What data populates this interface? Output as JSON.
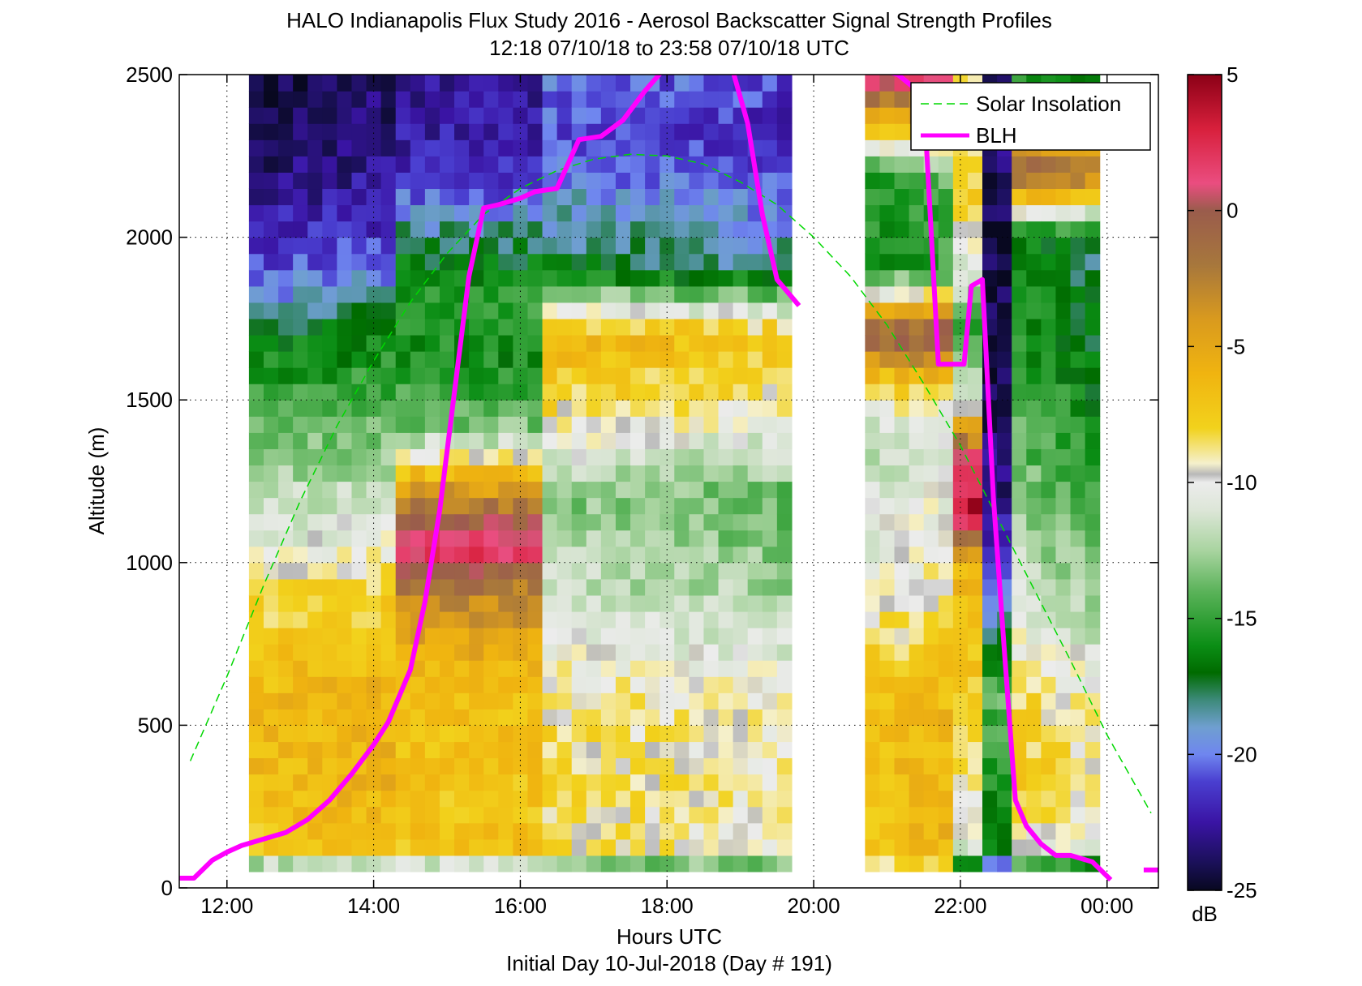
{
  "chart_data": {
    "type": "heatmap",
    "title": "HALO Indianapolis Flux Study 2016 - Aerosol Backscatter Signal Strength Profiles",
    "subtitle": "12:18 07/10/18 to 23:58 07/10/18  UTC",
    "xlabel": "Hours UTC",
    "xlabel2": "Initial Day 10-Jul-2018 (Day # 191)",
    "ylabel": "Altitude (m)",
    "xlim": [
      11.35,
      24.7
    ],
    "ylim": [
      0,
      2500
    ],
    "x_ticks": [
      {
        "value": 12,
        "label": "12:00"
      },
      {
        "value": 14,
        "label": "14:00"
      },
      {
        "value": 16,
        "label": "16:00"
      },
      {
        "value": 18,
        "label": "18:00"
      },
      {
        "value": 20,
        "label": "20:00"
      },
      {
        "value": 22,
        "label": "22:00"
      },
      {
        "value": 24,
        "label": "00:00"
      }
    ],
    "y_ticks": [
      0,
      500,
      1000,
      1500,
      2000,
      2500
    ],
    "grid": true,
    "legend_position": "top-right",
    "colorbar": {
      "label": "dB",
      "range": [
        -25,
        5
      ],
      "ticks": [
        5,
        0,
        -5,
        -10,
        -15,
        -20,
        -25
      ],
      "stops": [
        {
          "v": 5,
          "c": "#8b0016"
        },
        {
          "v": 3,
          "c": "#d8203c"
        },
        {
          "v": 1,
          "c": "#ea4d80"
        },
        {
          "v": 0,
          "c": "#9a5c4c"
        },
        {
          "v": -2,
          "c": "#a7773c"
        },
        {
          "v": -4,
          "c": "#d99a1e"
        },
        {
          "v": -6,
          "c": "#f0b410"
        },
        {
          "v": -8,
          "c": "#f2d21c"
        },
        {
          "v": -9.3,
          "c": "#f5f0cc"
        },
        {
          "v": -9.7,
          "c": "#b8b8b8"
        },
        {
          "v": -10,
          "c": "#ececec"
        },
        {
          "v": -11,
          "c": "#dde6d8"
        },
        {
          "v": -12.5,
          "c": "#a9d4a0"
        },
        {
          "v": -14,
          "c": "#5bb35a"
        },
        {
          "v": -16,
          "c": "#0b8e15"
        },
        {
          "v": -17,
          "c": "#006b00"
        },
        {
          "v": -18,
          "c": "#3d8a7a"
        },
        {
          "v": -19,
          "c": "#6f9fd0"
        },
        {
          "v": -20,
          "c": "#6f86ef"
        },
        {
          "v": -21,
          "c": "#4a3fd0"
        },
        {
          "v": -22.5,
          "c": "#3a14a4"
        },
        {
          "v": -24,
          "c": "#1a1058"
        },
        {
          "v": -25,
          "c": "#080820"
        }
      ]
    },
    "heatmap": {
      "time_start": 12.3,
      "time_step": 0.2,
      "alt_start": 50,
      "alt_step": 50,
      "rows": 49,
      "gap": [
        19.7,
        20.65
      ],
      "segments": [
        {
          "t0": 12.3,
          "t1": 19.7,
          "profile": [
            [
              50,
              -16.5
            ],
            [
              100,
              -7.5
            ],
            [
              300,
              -6.5
            ],
            [
              600,
              -6.5
            ],
            [
              900,
              -8.5
            ],
            [
              1100,
              -11
            ],
            [
              1300,
              -13
            ],
            [
              1550,
              -15.5
            ],
            [
              1700,
              -17
            ],
            [
              1850,
              -20
            ],
            [
              2000,
              -22
            ],
            [
              2200,
              -23.5
            ],
            [
              2500,
              -24.5
            ]
          ],
          "shift_end": 2.5
        },
        {
          "t0": 14.3,
          "t1": 16.4,
          "profile": [
            [
              50,
              -16
            ],
            [
              100,
              -7
            ],
            [
              600,
              -7
            ],
            [
              900,
              -3
            ],
            [
              1050,
              2.5
            ],
            [
              1200,
              -3
            ],
            [
              1400,
              -13
            ],
            [
              1600,
              -16
            ],
            [
              1800,
              -15
            ],
            [
              2000,
              -18
            ],
            [
              2200,
              -22
            ],
            [
              2500,
              -23
            ]
          ],
          "shift_end": 0
        },
        {
          "t0": 16.4,
          "t1": 19.7,
          "profile": [
            [
              50,
              -17
            ],
            [
              100,
              -8.5
            ],
            [
              500,
              -8.5
            ],
            [
              700,
              -9.5
            ],
            [
              900,
              -11.5
            ],
            [
              1200,
              -13
            ],
            [
              1500,
              -8
            ],
            [
              1700,
              -6
            ],
            [
              1900,
              -17
            ],
            [
              2100,
              -19
            ],
            [
              2300,
              -21
            ],
            [
              2500,
              -20
            ]
          ],
          "shift_end": -1
        },
        {
          "t0": 20.7,
          "t1": 21.9,
          "profile": [
            [
              50,
              -10.5
            ],
            [
              100,
              -7
            ],
            [
              500,
              -7
            ],
            [
              700,
              -8
            ],
            [
              900,
              -10
            ],
            [
              1200,
              -11
            ],
            [
              1400,
              -12
            ],
            [
              1550,
              -8
            ],
            [
              1700,
              0
            ],
            [
              1900,
              -16
            ],
            [
              2200,
              -15
            ],
            [
              2500,
              2
            ]
          ],
          "shift_end": 1
        },
        {
          "t0": 21.9,
          "t1": 22.3,
          "profile": [
            [
              50,
              -17
            ],
            [
              150,
              -10
            ],
            [
              400,
              -9
            ],
            [
              700,
              -7
            ],
            [
              1000,
              -6
            ],
            [
              1150,
              4
            ],
            [
              1300,
              2
            ],
            [
              1500,
              -10
            ],
            [
              1700,
              -15
            ],
            [
              1900,
              -11
            ],
            [
              2100,
              -8
            ],
            [
              2500,
              -8
            ]
          ],
          "shift_end": 0
        },
        {
          "t0": 22.3,
          "t1": 22.7,
          "profile": [
            [
              50,
              -22
            ],
            [
              100,
              -17
            ],
            [
              600,
              -14
            ],
            [
              900,
              -20
            ],
            [
              1200,
              -23
            ],
            [
              1500,
              -24
            ],
            [
              1800,
              -24.5
            ],
            [
              2100,
              -24
            ],
            [
              2500,
              -23
            ]
          ],
          "shift_end": 0
        },
        {
          "t0": 22.7,
          "t1": 24.0,
          "profile": [
            [
              50,
              -19
            ],
            [
              100,
              -9.5
            ],
            [
              300,
              -7
            ],
            [
              600,
              -8
            ],
            [
              900,
              -11
            ],
            [
              1200,
              -13
            ],
            [
              1600,
              -15
            ],
            [
              2000,
              -16
            ],
            [
              2200,
              0
            ],
            [
              2500,
              -16
            ]
          ],
          "shift_end": -2
        }
      ]
    },
    "series": [
      {
        "name": "Solar Insolation",
        "color": "#00d800",
        "style": "dashed",
        "x": [
          11.5,
          12.0,
          12.5,
          13.0,
          13.5,
          14.0,
          14.5,
          15.0,
          15.5,
          16.0,
          16.5,
          17.0,
          17.5,
          18.0,
          18.5,
          19.0,
          19.5,
          20.0,
          20.5,
          21.0,
          21.5,
          22.0,
          22.5,
          23.0,
          23.5,
          24.0,
          24.6
        ],
        "y": [
          390,
          650,
          930,
          1190,
          1420,
          1620,
          1800,
          1950,
          2070,
          2150,
          2205,
          2240,
          2255,
          2250,
          2225,
          2170,
          2100,
          2000,
          1880,
          1730,
          1550,
          1360,
          1140,
          920,
          700,
          470,
          230
        ]
      },
      {
        "name": "BLH",
        "color": "#ff00ff",
        "style": "solid",
        "segments": [
          {
            "x": [
              11.35,
              11.55,
              11.8,
              12.0,
              12.2,
              12.5,
              12.8,
              13.1,
              13.4,
              13.7,
              14.0,
              14.2,
              14.5,
              14.7,
              14.9,
              15.1,
              15.3,
              15.5,
              15.7,
              16.0,
              16.2,
              16.5,
              16.8,
              17.1,
              17.4,
              17.7,
              17.95,
              18.2,
              18.6,
              18.9,
              19.1,
              19.3,
              19.5,
              19.8
            ],
            "y": [
              30,
              30,
              85,
              110,
              130,
              150,
              170,
              210,
              270,
              350,
              440,
              510,
              670,
              880,
              1160,
              1520,
              1880,
              2090,
              2100,
              2120,
              2140,
              2150,
              2300,
              2310,
              2360,
              2450,
              2515,
              2530,
              2510,
              2510,
              2350,
              2070,
              1870,
              1790
            ]
          },
          {
            "x": [
              20.9,
              21.15,
              21.5,
              21.7,
              21.8,
              22.05,
              22.15,
              22.3,
              22.45,
              22.6,
              22.75,
              22.9,
              23.1,
              23.3,
              23.5,
              23.8,
              24.05
            ],
            "y": [
              2515,
              2500,
              2435,
              1610,
              1610,
              1610,
              1850,
              1870,
              1200,
              730,
              270,
              190,
              135,
              100,
              100,
              80,
              25
            ]
          },
          {
            "x": [
              24.5,
              24.7
            ],
            "y": [
              55,
              55
            ]
          }
        ]
      }
    ]
  }
}
